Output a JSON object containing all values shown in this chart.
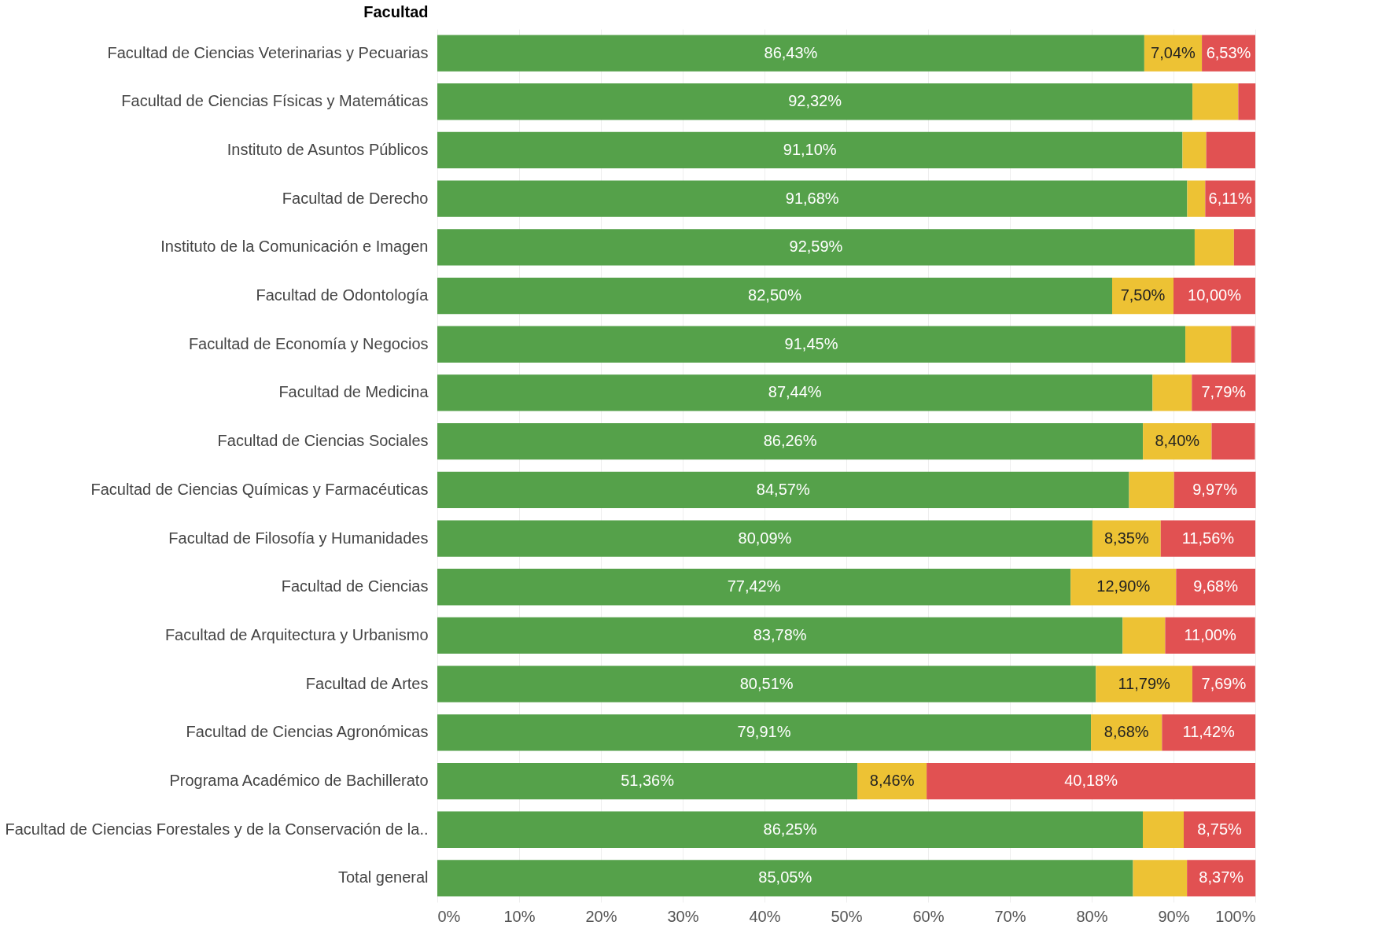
{
  "chart_data": {
    "type": "bar",
    "orientation": "horizontal",
    "stacked": true,
    "ylabel": "Facultad",
    "categories": [
      "Facultad de Ciencias Veterinarias y Pecuarias",
      "Facultad de Ciencias Físicas y Matemáticas",
      "Instituto de Asuntos Públicos",
      "Facultad de Derecho",
      "Instituto de la Comunicación e Imagen",
      "Facultad de Odontología",
      "Facultad de Economía y Negocios",
      "Facultad de Medicina",
      "Facultad de Ciencias Sociales",
      "Facultad de Ciencias Químicas y Farmacéuticas",
      "Facultad de Filosofía y Humanidades",
      "Facultad de Ciencias",
      "Facultad de Arquitectura y Urbanismo",
      "Facultad de Artes",
      "Facultad de Ciencias Agronómicas",
      "Programa Académico de Bachillerato",
      "Facultad de Ciencias Forestales y de la Conservación de la..",
      "Total general"
    ],
    "series": [
      {
        "color": "#55a14a",
        "values": [
          86.43,
          92.32,
          91.1,
          91.68,
          92.59,
          82.5,
          91.45,
          87.44,
          86.26,
          84.57,
          80.09,
          77.42,
          83.78,
          80.51,
          79.91,
          51.36,
          86.25,
          85.05
        ],
        "value_labels": [
          "86,43%",
          "92,32%",
          "91,10%",
          "91,68%",
          "92,59%",
          "82,50%",
          "91,45%",
          "87,44%",
          "86,26%",
          "84,57%",
          "80,09%",
          "77,42%",
          "83,78%",
          "80,51%",
          "79,91%",
          "51,36%",
          "86,25%",
          "85,05%"
        ]
      },
      {
        "color": "#edc234",
        "values": [
          7.04,
          5.6,
          2.9,
          2.2,
          4.8,
          7.5,
          5.6,
          4.8,
          8.4,
          5.5,
          8.35,
          12.9,
          5.2,
          11.79,
          8.68,
          8.46,
          5.0,
          6.6
        ],
        "value_labels": [
          "7,04%",
          null,
          null,
          null,
          null,
          "7,50%",
          null,
          null,
          "8,40%",
          null,
          "8,35%",
          "12,90%",
          null,
          "11,79%",
          "8,68%",
          "8,46%",
          null,
          null
        ]
      },
      {
        "color": "#e15152",
        "values": [
          6.53,
          2.1,
          6.0,
          6.11,
          2.6,
          10.0,
          2.9,
          7.79,
          5.3,
          9.97,
          11.56,
          9.68,
          11.0,
          7.69,
          11.42,
          40.18,
          8.75,
          8.37
        ],
        "value_labels": [
          "6,53%",
          null,
          null,
          "6,11%",
          null,
          "10,00%",
          null,
          "7,79%",
          null,
          "9,97%",
          "11,56%",
          "9,68%",
          "11,00%",
          "7,69%",
          "11,42%",
          "40,18%",
          "8,75%",
          "8,37%"
        ]
      }
    ],
    "xlim": [
      0,
      100
    ],
    "xticks": [
      {
        "value": 0,
        "label": "0%"
      },
      {
        "value": 10,
        "label": "10%"
      },
      {
        "value": 20,
        "label": "20%"
      },
      {
        "value": 30,
        "label": "30%"
      },
      {
        "value": 40,
        "label": "40%"
      },
      {
        "value": 50,
        "label": "50%"
      },
      {
        "value": 60,
        "label": "60%"
      },
      {
        "value": 70,
        "label": "70%"
      },
      {
        "value": 80,
        "label": "80%"
      },
      {
        "value": 90,
        "label": "90%"
      },
      {
        "value": 100,
        "label": "100%"
      }
    ],
    "grid": "x"
  }
}
